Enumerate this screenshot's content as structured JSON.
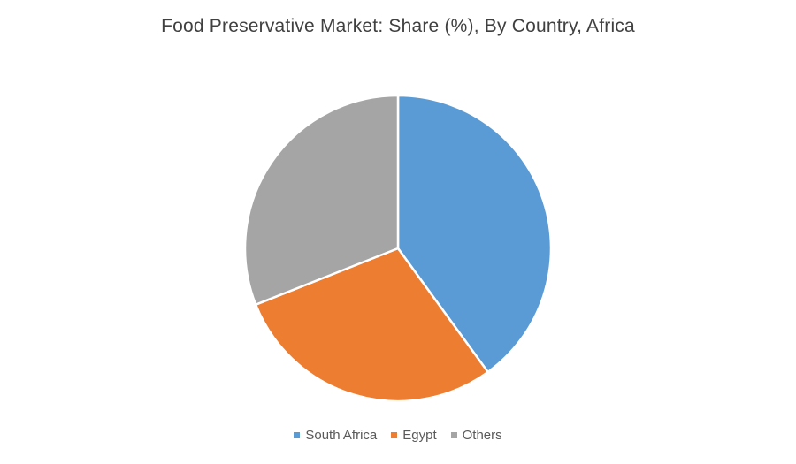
{
  "chart_data": {
    "type": "pie",
    "title": "Food Preservative Market: Share (%), By Country, Africa",
    "categories": [
      "South Africa",
      "Egypt",
      "Others"
    ],
    "values": [
      40,
      29,
      31
    ],
    "colors": [
      "#5b9bd5",
      "#ed7d31",
      "#a5a5a5"
    ],
    "legend_position": "bottom"
  }
}
